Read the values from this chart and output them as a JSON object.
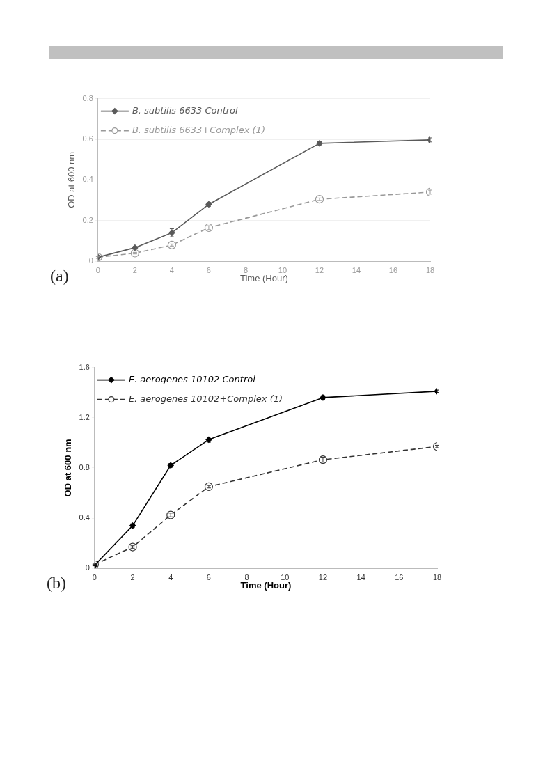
{
  "chart_data": [
    {
      "type": "line",
      "xlabel": "Time (Hour)",
      "ylabel": "OD at 600 nm",
      "annotations": [
        "(a)"
      ],
      "x": [
        0,
        2,
        4,
        6,
        12,
        18
      ],
      "xlim": [
        0,
        18
      ],
      "xticks": [
        0,
        2,
        4,
        6,
        8,
        10,
        12,
        14,
        16,
        18
      ],
      "ylim": [
        0,
        0.8
      ],
      "yticks": [
        0,
        0.2,
        0.4,
        0.6,
        0.8
      ],
      "grid": "y",
      "legend": "top left",
      "series": [
        {
          "name": "B. subtilis 6633 Control",
          "color": "#5a5a5a",
          "marker": "diamond",
          "line_style": "solid",
          "values": [
            0.02,
            0.067,
            0.14,
            0.28,
            0.58,
            0.597
          ],
          "errors": [
            0.005,
            0.006,
            0.02,
            0.01,
            0.008,
            0.01
          ]
        },
        {
          "name": "B. subtilis 6633+Complex (1)",
          "color": "#999999",
          "marker": "circle",
          "line_style": "dashed",
          "values": [
            0.02,
            0.04,
            0.08,
            0.165,
            0.305,
            0.34
          ],
          "errors": [
            0.004,
            0.004,
            0.005,
            0.01,
            0.006,
            0.01
          ]
        }
      ]
    },
    {
      "type": "line",
      "xlabel": "Time (Hour)",
      "ylabel": "OD at 600 nm",
      "annotations": [
        "(b)"
      ],
      "x": [
        0,
        2,
        4,
        6,
        12,
        18
      ],
      "xlim": [
        0,
        18
      ],
      "xticks": [
        0,
        2,
        4,
        6,
        8,
        10,
        12,
        14,
        16,
        18
      ],
      "ylim": [
        0,
        1.6
      ],
      "yticks": [
        0,
        0.4,
        0.8,
        1.2,
        1.6
      ],
      "grid": false,
      "legend": "top left",
      "series": [
        {
          "name": "E. aerogenes 10102 Control",
          "color": "#000000",
          "marker": "diamond",
          "line_style": "solid",
          "values": [
            0.025,
            0.34,
            0.82,
            1.025,
            1.36,
            1.41
          ],
          "errors": [
            0.005,
            0.015,
            0.015,
            0.02,
            0.015,
            0.01
          ]
        },
        {
          "name": "E. aerogenes 10102+Complex (1)",
          "color": "#333333",
          "marker": "circle",
          "line_style": "dashed",
          "values": [
            0.03,
            0.17,
            0.425,
            0.65,
            0.865,
            0.97
          ],
          "errors": [
            0.005,
            0.01,
            0.015,
            0.01,
            0.02,
            0.01
          ]
        }
      ]
    }
  ]
}
